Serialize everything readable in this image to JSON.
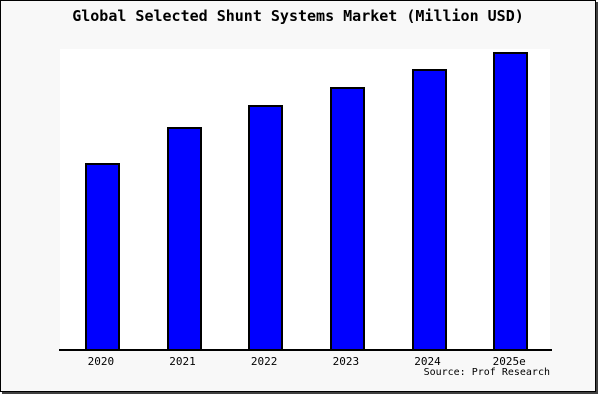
{
  "chart_data": {
    "type": "bar",
    "title": "Global Selected Shunt Systems Market (Million USD)",
    "source": "Source: Prof Research",
    "categories": [
      "2020",
      "2021",
      "2022",
      "2023",
      "2024",
      "2025e"
    ],
    "values": [
      188,
      224,
      246,
      264,
      282,
      299
    ],
    "values_unit": "relative (estimated from bar heights; no y-axis values shown)",
    "xlabel": "",
    "ylabel": "",
    "ylim": [
      0,
      302
    ],
    "grid": false,
    "legend": false,
    "bar_color": "#0000ff",
    "bar_border_color": "#000000",
    "plot_background": "#ffffff",
    "canvas_background": "#f8f8f8",
    "frame_border_color": "#000000",
    "text_color": "#000000"
  }
}
